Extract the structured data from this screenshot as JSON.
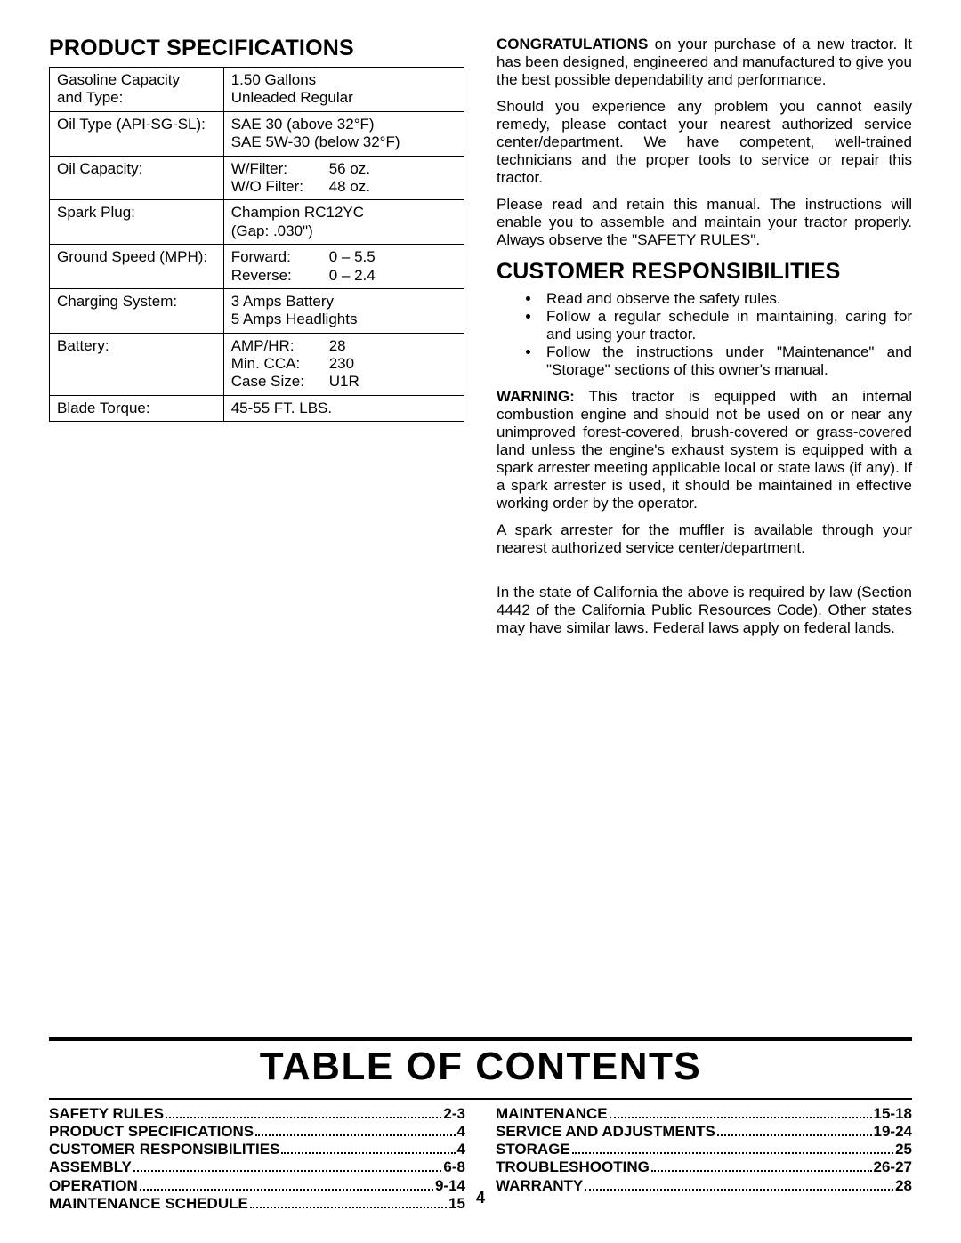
{
  "page_number": "4",
  "section_specs_title": "PRODUCT SPECIFICATIONS",
  "specs": [
    {
      "label": "Gasoline Capacity\nand Type:",
      "value": "1.50 Gallons\nUnleaded Regular"
    },
    {
      "label": "Oil Type (API-SG-SL):",
      "value": "SAE 30 (above 32°F)\nSAE 5W-30 (below 32°F)"
    },
    {
      "label": "Oil Capacity:",
      "value_rows": [
        {
          "k": "W/Filter:",
          "v": "56 oz."
        },
        {
          "k": "W/O Filter:",
          "v": "48 oz."
        }
      ]
    },
    {
      "label": "Spark Plug:",
      "value": "Champion RC12YC\n(Gap: .030\")"
    },
    {
      "label": "Ground Speed (MPH):",
      "value_rows": [
        {
          "k": "Forward:",
          "v": "0 – 5.5"
        },
        {
          "k": "Reverse:",
          "v": "0 – 2.4"
        }
      ]
    },
    {
      "label": "Charging System:",
      "value": "3 Amps Battery\n5 Amps Headlights"
    },
    {
      "label": "Battery:",
      "value_rows": [
        {
          "k": "AMP/HR:",
          "v": "28"
        },
        {
          "k": "Min. CCA:",
          "v": "230"
        },
        {
          "k": "Case Size:",
          "v": "U1R"
        }
      ]
    },
    {
      "label": "Blade Torque:",
      "value": "45-55 FT. LBS."
    }
  ],
  "right": {
    "congrats_bold": "CONGRATULATIONS",
    "congrats_rest": " on your purchase of a new tractor. It has been designed, engineered and manufactured to give you the best possible dependability and performance.",
    "p2": "Should you experience any problem you cannot easily remedy, please contact your nearest authorized service center/department.  We have competent, well-trained technicians and the proper tools to service or repair this tractor.",
    "p3": "Please read and retain this manual.  The instructions will enable you to assemble and maintain your tractor properly. Always observe the \"SAFETY RULES\".",
    "cust_title": "CUSTOMER RESPONSIBILITIES",
    "bullets": [
      "Read and observe the safety rules.",
      "Follow a regular schedule in maintaining, caring for and using your tractor.",
      "Follow the instructions under \"Maintenance\" and \"Storage\" sections of this owner's manual."
    ],
    "warn_bold": "WARNING:",
    "warn_rest": "  This tractor is equipped with an internal combustion engine and should not be used on or near any unimproved forest-covered, brush-covered or grass-covered land unless the engine's exhaust system is equipped with a spark arrester meeting applicable local or state laws (if any).  If a spark arrester is used, it should be maintained in effective working order by the operator.",
    "p5": "A spark arrester for the muffler is available through your nearest authorized service center/department.",
    "p6": "In the state of California the above is required by law (Section 4442 of the California Public Resources Code). Other states may have similar laws.  Federal laws apply on federal lands."
  },
  "toc_title": "TABLE OF CONTENTS",
  "toc_left": [
    {
      "label": "SAFETY RULES",
      "page": "2-3"
    },
    {
      "label": "PRODUCT SPECIFICATIONS",
      "page": "4"
    },
    {
      "label": "CUSTOMER RESPONSIBILITIES",
      "page": "4"
    },
    {
      "label": "ASSEMBLY",
      "page": "6-8"
    },
    {
      "label": "OPERATION",
      "page": "9-14"
    },
    {
      "label": "MAINTENANCE SCHEDULE",
      "page": "15"
    }
  ],
  "toc_right": [
    {
      "label": "MAINTENANCE",
      "page": "15-18"
    },
    {
      "label": "SERVICE AND ADJUSTMENTS",
      "page": "19-24"
    },
    {
      "label": "STORAGE",
      "page": "25"
    },
    {
      "label": "TROUBLESHOOTING",
      "page": "26-27"
    },
    {
      "label": "WARRANTY",
      "page": "28"
    }
  ]
}
